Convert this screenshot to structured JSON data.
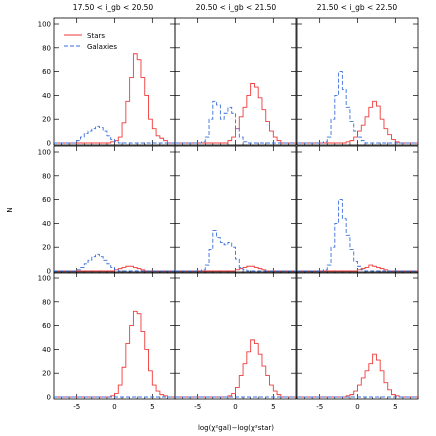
{
  "figure": {
    "ylabel": "N",
    "xlabel": "log(χ²gal)−log(χ²star)",
    "col_titles": [
      "17.50 < i_gb < 20.50",
      "20.50 < i_gb < 21.50",
      "21.50 < i_gb < 22.50"
    ],
    "legend": [
      {
        "name": "Stars",
        "color": "#ef3a3a",
        "dash": "solid"
      },
      {
        "name": "Galaxies",
        "color": "#3a6fdc",
        "dash": "dashed"
      }
    ]
  },
  "chart_data": {
    "type": "histogram-grid",
    "rows": 3,
    "cols": 3,
    "xlim": [
      -8,
      8
    ],
    "ylim": [
      0,
      100
    ],
    "xticks": [
      -5,
      0,
      5
    ],
    "yticks": [
      0,
      20,
      40,
      60,
      80,
      100
    ],
    "bin_start": -8,
    "bin_width": 0.5,
    "panels": [
      {
        "row": 0,
        "col": 0,
        "series": [
          {
            "name": "Stars",
            "values": [
              0,
              0,
              0,
              0,
              0,
              0,
              0,
              0,
              0,
              0,
              0,
              0,
              0,
              0,
              0,
              1,
              2,
              5,
              17,
              35,
              55,
              75,
              70,
              55,
              40,
              20,
              12,
              6,
              4,
              2,
              0,
              0
            ]
          },
          {
            "name": "Galaxies",
            "values": [
              0,
              0,
              0,
              0,
              0,
              0,
              2,
              5,
              8,
              10,
              12,
              14,
              13,
              10,
              6,
              3,
              1,
              0,
              0,
              0,
              0,
              0,
              0,
              0,
              0,
              0,
              0,
              0,
              0,
              0,
              0,
              0
            ]
          }
        ]
      },
      {
        "row": 0,
        "col": 1,
        "series": [
          {
            "name": "Stars",
            "values": [
              0,
              0,
              0,
              0,
              0,
              0,
              0,
              0,
              0,
              0,
              0,
              0,
              0,
              0,
              2,
              5,
              12,
              22,
              30,
              40,
              50,
              47,
              38,
              28,
              18,
              10,
              5,
              2,
              0,
              0,
              0,
              0
            ]
          },
          {
            "name": "Galaxies",
            "values": [
              0,
              0,
              0,
              0,
              0,
              0,
              0,
              1,
              5,
              20,
              35,
              32,
              20,
              25,
              30,
              25,
              12,
              5,
              1,
              0,
              0,
              0,
              0,
              0,
              0,
              0,
              0,
              0,
              0,
              0,
              0,
              0
            ]
          }
        ]
      },
      {
        "row": 0,
        "col": 2,
        "series": [
          {
            "name": "Stars",
            "values": [
              0,
              0,
              0,
              0,
              0,
              0,
              0,
              0,
              0,
              0,
              0,
              0,
              0,
              1,
              2,
              5,
              10,
              15,
              22,
              30,
              35,
              31,
              20,
              12,
              7,
              3,
              1,
              0,
              0,
              0,
              0,
              0
            ]
          },
          {
            "name": "Galaxies",
            "values": [
              0,
              0,
              0,
              0,
              0,
              0,
              0,
              1,
              5,
              20,
              40,
              60,
              45,
              30,
              18,
              10,
              5,
              2,
              0,
              0,
              0,
              0,
              0,
              0,
              0,
              0,
              0,
              0,
              0,
              0,
              0,
              0
            ]
          }
        ]
      },
      {
        "row": 1,
        "col": 0,
        "series": [
          {
            "name": "Stars",
            "values": [
              0,
              0,
              0,
              0,
              0,
              0,
              0,
              0,
              0,
              0,
              0,
              0,
              0,
              0,
              0,
              0,
              1,
              2,
              3,
              4,
              4,
              3,
              2,
              1,
              0,
              0,
              0,
              0,
              0,
              0,
              0,
              0
            ]
          },
          {
            "name": "Galaxies",
            "values": [
              0,
              0,
              0,
              0,
              0,
              0,
              1,
              3,
              6,
              9,
              12,
              14,
              12,
              9,
              6,
              3,
              1,
              0,
              0,
              0,
              0,
              0,
              0,
              0,
              0,
              0,
              0,
              0,
              0,
              0,
              0,
              0
            ]
          }
        ]
      },
      {
        "row": 1,
        "col": 1,
        "series": [
          {
            "name": "Stars",
            "values": [
              0,
              0,
              0,
              0,
              0,
              0,
              0,
              0,
              0,
              0,
              0,
              0,
              0,
              0,
              0,
              0,
              1,
              2,
              3,
              4,
              4,
              3,
              2,
              1,
              0,
              0,
              0,
              0,
              0,
              0,
              0,
              0
            ]
          },
          {
            "name": "Galaxies",
            "values": [
              0,
              0,
              0,
              0,
              0,
              0,
              0,
              1,
              5,
              18,
              34,
              28,
              24,
              22,
              24,
              20,
              10,
              3,
              1,
              0,
              0,
              0,
              0,
              0,
              0,
              0,
              0,
              0,
              0,
              0,
              0,
              0
            ]
          }
        ]
      },
      {
        "row": 1,
        "col": 2,
        "series": [
          {
            "name": "Stars",
            "values": [
              0,
              0,
              0,
              0,
              0,
              0,
              0,
              0,
              0,
              0,
              0,
              0,
              0,
              0,
              0,
              0,
              1,
              2,
              3,
              5,
              4,
              3,
              2,
              1,
              0,
              0,
              0,
              0,
              0,
              0,
              0,
              0
            ]
          },
          {
            "name": "Galaxies",
            "values": [
              0,
              0,
              0,
              0,
              0,
              0,
              0,
              1,
              5,
              20,
              40,
              60,
              44,
              30,
              18,
              8,
              4,
              1,
              0,
              0,
              0,
              0,
              0,
              0,
              0,
              0,
              0,
              0,
              0,
              0,
              0,
              0
            ]
          }
        ]
      },
      {
        "row": 2,
        "col": 0,
        "series": [
          {
            "name": "Stars",
            "values": [
              0,
              0,
              0,
              0,
              0,
              0,
              0,
              0,
              0,
              0,
              0,
              0,
              0,
              0,
              0,
              1,
              3,
              10,
              25,
              45,
              60,
              72,
              70,
              55,
              40,
              22,
              10,
              5,
              2,
              1,
              0,
              0
            ]
          },
          {
            "name": "Galaxies",
            "values": [
              0,
              0,
              0,
              0,
              0,
              0,
              0,
              0,
              0,
              0,
              0,
              0,
              0,
              0,
              0,
              0,
              0,
              0,
              0,
              0,
              0,
              0,
              0,
              0,
              0,
              0,
              0,
              0,
              0,
              0,
              0,
              0
            ]
          }
        ]
      },
      {
        "row": 2,
        "col": 1,
        "series": [
          {
            "name": "Stars",
            "values": [
              0,
              0,
              0,
              0,
              0,
              0,
              0,
              0,
              0,
              0,
              0,
              0,
              0,
              0,
              1,
              3,
              8,
              18,
              28,
              38,
              48,
              45,
              36,
              26,
              18,
              10,
              5,
              2,
              0,
              0,
              0,
              0
            ]
          },
          {
            "name": "Galaxies",
            "values": [
              0,
              0,
              0,
              0,
              0,
              0,
              0,
              0,
              0,
              0,
              0,
              0,
              0,
              0,
              0,
              0,
              0,
              0,
              0,
              0,
              0,
              0,
              0,
              0,
              0,
              0,
              0,
              0,
              0,
              0,
              0,
              0
            ]
          }
        ]
      },
      {
        "row": 2,
        "col": 2,
        "series": [
          {
            "name": "Stars",
            "values": [
              0,
              0,
              0,
              0,
              0,
              0,
              0,
              0,
              0,
              0,
              0,
              0,
              0,
              1,
              2,
              5,
              10,
              16,
              22,
              28,
              36,
              31,
              22,
              12,
              6,
              2,
              1,
              0,
              0,
              0,
              0,
              0
            ]
          },
          {
            "name": "Galaxies",
            "values": [
              0,
              0,
              0,
              0,
              0,
              0,
              0,
              0,
              0,
              0,
              0,
              0,
              0,
              0,
              0,
              0,
              0,
              0,
              0,
              0,
              0,
              0,
              0,
              0,
              0,
              0,
              0,
              0,
              0,
              0,
              0,
              0
            ]
          }
        ]
      }
    ]
  }
}
